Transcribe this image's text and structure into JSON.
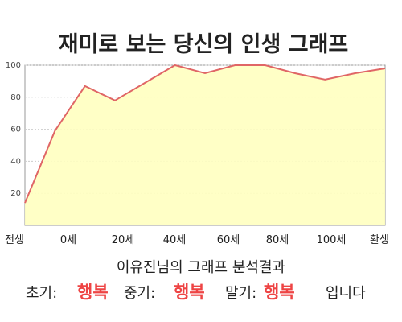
{
  "chart_data": {
    "type": "area",
    "title": "재미로 보는 당신의 인생 그래프",
    "x_labels": [
      "전생",
      "0세",
      "20세",
      "40세",
      "60세",
      "80세",
      "100세",
      "환생"
    ],
    "y_ticks": [
      20,
      40,
      60,
      80,
      100
    ],
    "ylim": [
      0,
      100
    ],
    "values": [
      14,
      59,
      87,
      78,
      89,
      100,
      95,
      100,
      100,
      95,
      91,
      95,
      98
    ],
    "colors": {
      "line": "#e06666",
      "fill": "#ffffc0",
      "grid": "#cccccc"
    }
  },
  "caption": {
    "line1": "이유진님의 그래프 분석결과",
    "early_label": "초기:",
    "early_value": "행복",
    "mid_label": "중기:",
    "mid_value": "행복",
    "late_label": "말기:",
    "late_value": "행복",
    "ending": "입니다"
  }
}
